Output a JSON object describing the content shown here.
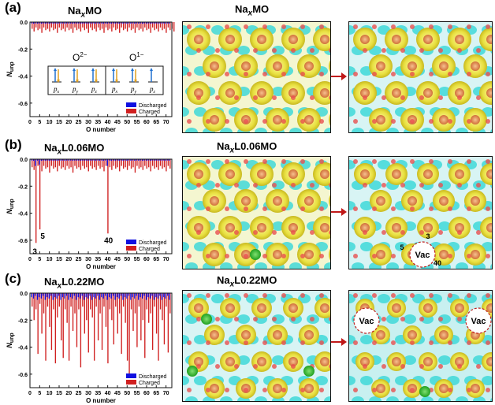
{
  "panels": [
    {
      "label": "(a)",
      "title_base": "Na",
      "title_sub": "x",
      "title_rest": "MO",
      "image_title_base": "Na",
      "image_title_sub": "x",
      "image_title_rest": "MO",
      "orbital_inset": {
        "groups": [
          {
            "label": "O",
            "charge": "2−",
            "orbitals": [
              "p",
              "p",
              "p"
            ],
            "subs": [
              "x",
              "y",
              "z"
            ]
          },
          {
            "label": "O",
            "charge": "1−",
            "orbitals": [
              "p",
              "p",
              "p"
            ],
            "subs": [
              "x",
              "y",
              "z"
            ]
          }
        ]
      },
      "annotations": [],
      "vac_labels": []
    },
    {
      "label": "(b)",
      "title_base": "Na",
      "title_sub": "x",
      "title_rest": "L0.06MO",
      "image_title_base": "Na",
      "image_title_sub": "x",
      "image_title_rest": "L0.06MO",
      "annotations": [
        {
          "text": "5",
          "x": 5
        },
        {
          "text": "3",
          "x": 3
        },
        {
          "text": "40",
          "x": 40
        }
      ],
      "image_annotations": [
        "3",
        "5",
        "40"
      ],
      "vac_labels": [
        "Vac"
      ]
    },
    {
      "label": "(c)",
      "title_base": "Na",
      "title_sub": "x",
      "title_rest": "L0.22MO",
      "image_title_base": "Na",
      "image_title_sub": "x",
      "image_title_rest": "L0.22MO",
      "annotations": [],
      "vac_labels": [
        "Vac",
        "Vac"
      ]
    }
  ],
  "chart_data": [
    {
      "type": "bar",
      "panel": "(a)",
      "xlabel": "O number",
      "ylabel": "N",
      "ylabel_sub": "unp",
      "xlim": [
        0,
        73
      ],
      "ylim": [
        -0.7,
        0.0
      ],
      "xticks": [
        0,
        5,
        10,
        15,
        20,
        25,
        30,
        35,
        40,
        45,
        50,
        55,
        60,
        65,
        70
      ],
      "yticks": [
        0.0,
        -0.2,
        -0.4,
        -0.6
      ],
      "ytick_labels": [
        "0.0",
        "-0.2",
        "-0.4",
        "-0.6"
      ],
      "legend": [
        "Discharged",
        "Charged"
      ],
      "legend_placement": "bottom-right",
      "series": [
        {
          "name": "Discharged",
          "color": "#1010e0",
          "values": [
            -0.01,
            -0.012,
            -0.01,
            -0.011,
            -0.01,
            -0.012,
            -0.01,
            -0.011,
            -0.01,
            -0.012,
            -0.01,
            -0.011,
            -0.01,
            -0.012,
            -0.01,
            -0.011,
            -0.01,
            -0.012,
            -0.01,
            -0.011,
            -0.01,
            -0.012,
            -0.01,
            -0.011,
            -0.01,
            -0.012,
            -0.01,
            -0.011,
            -0.01,
            -0.012,
            -0.01,
            -0.011,
            -0.01,
            -0.012,
            -0.01,
            -0.011,
            -0.01,
            -0.012,
            -0.01,
            -0.011,
            -0.01,
            -0.012,
            -0.01,
            -0.011,
            -0.01,
            -0.012,
            -0.01,
            -0.011,
            -0.01,
            -0.012,
            -0.01,
            -0.011,
            -0.01,
            -0.012,
            -0.01,
            -0.011,
            -0.01,
            -0.012,
            -0.01,
            -0.011,
            -0.01,
            -0.012,
            -0.01,
            -0.011,
            -0.01,
            -0.012,
            -0.01,
            -0.011,
            -0.01,
            -0.012,
            -0.01,
            -0.011
          ]
        },
        {
          "name": "Charged",
          "color": "#d02020",
          "values": [
            -0.05,
            -0.07,
            -0.04,
            -0.06,
            -0.05,
            -0.08,
            -0.04,
            -0.06,
            -0.05,
            -0.07,
            -0.04,
            -0.06,
            -0.05,
            -0.08,
            -0.04,
            -0.06,
            -0.05,
            -0.07,
            -0.04,
            -0.06,
            -0.05,
            -0.08,
            -0.04,
            -0.06,
            -0.05,
            -0.07,
            -0.04,
            -0.06,
            -0.05,
            -0.08,
            -0.04,
            -0.06,
            -0.05,
            -0.07,
            -0.04,
            -0.06,
            -0.05,
            -0.08,
            -0.04,
            -0.06,
            -0.05,
            -0.07,
            -0.04,
            -0.06,
            -0.05,
            -0.08,
            -0.04,
            -0.06,
            -0.05,
            -0.07,
            -0.04,
            -0.06,
            -0.05,
            -0.08,
            -0.04,
            -0.06,
            -0.05,
            -0.07,
            -0.04,
            -0.06,
            -0.05,
            -0.08,
            -0.04,
            -0.06,
            -0.05,
            -0.07,
            -0.04,
            -0.06,
            -0.05,
            -0.08,
            -0.04,
            -0.06,
            -0.05,
            -0.07
          ]
        }
      ]
    },
    {
      "type": "bar",
      "panel": "(b)",
      "xlabel": "O number",
      "ylabel": "N",
      "ylabel_sub": "unp",
      "xlim": [
        0,
        73
      ],
      "ylim": [
        -0.7,
        0.0
      ],
      "xticks": [
        0,
        5,
        10,
        15,
        20,
        25,
        30,
        35,
        40,
        45,
        50,
        55,
        60,
        65,
        70
      ],
      "yticks": [
        0.0,
        -0.2,
        -0.4,
        -0.6
      ],
      "ytick_labels": [
        "0.0",
        "-0.2",
        "-0.4",
        "-0.6"
      ],
      "legend": [
        "Discharged",
        "Charged"
      ],
      "legend_placement": "bottom-right",
      "series": [
        {
          "name": "Discharged",
          "color": "#1010e0",
          "values": [
            -0.01,
            -0.012,
            -0.05,
            -0.011,
            -0.04,
            -0.012,
            -0.01,
            -0.011,
            -0.01,
            -0.012,
            -0.01,
            -0.011,
            -0.01,
            -0.012,
            -0.01,
            -0.011,
            -0.01,
            -0.012,
            -0.01,
            -0.011,
            -0.01,
            -0.012,
            -0.01,
            -0.011,
            -0.01,
            -0.012,
            -0.01,
            -0.011,
            -0.01,
            -0.012,
            -0.01,
            -0.011,
            -0.01,
            -0.012,
            -0.01,
            -0.011,
            -0.01,
            -0.012,
            -0.01,
            -0.05,
            -0.01,
            -0.012,
            -0.01,
            -0.011,
            -0.01,
            -0.012,
            -0.01,
            -0.011,
            -0.01,
            -0.012,
            -0.01,
            -0.011,
            -0.01,
            -0.012,
            -0.01,
            -0.011,
            -0.01,
            -0.012,
            -0.01,
            -0.011,
            -0.01,
            -0.012,
            -0.01,
            -0.011,
            -0.01,
            -0.012,
            -0.01,
            -0.011,
            -0.01,
            -0.012,
            -0.01,
            -0.011
          ]
        },
        {
          "name": "Charged",
          "color": "#d02020",
          "values": [
            -0.06,
            -0.08,
            -0.62,
            -0.05,
            -0.52,
            -0.09,
            -0.05,
            -0.07,
            -0.06,
            -0.1,
            -0.05,
            -0.07,
            -0.06,
            -0.09,
            -0.05,
            -0.07,
            -0.06,
            -0.08,
            -0.05,
            -0.07,
            -0.06,
            -0.1,
            -0.05,
            -0.07,
            -0.06,
            -0.08,
            -0.05,
            -0.07,
            -0.06,
            -0.09,
            -0.05,
            -0.07,
            -0.06,
            -0.08,
            -0.05,
            -0.07,
            -0.06,
            -0.09,
            -0.05,
            -0.55,
            -0.06,
            -0.08,
            -0.05,
            -0.07,
            -0.06,
            -0.09,
            -0.05,
            -0.07,
            -0.06,
            -0.08,
            -0.05,
            -0.07,
            -0.06,
            -0.1,
            -0.05,
            -0.07,
            -0.06,
            -0.08,
            -0.05,
            -0.07,
            -0.06,
            -0.09,
            -0.05,
            -0.07,
            -0.06,
            -0.08,
            -0.05,
            -0.07,
            -0.06,
            -0.09,
            -0.05,
            -0.07
          ]
        }
      ]
    },
    {
      "type": "bar",
      "panel": "(c)",
      "xlabel": "O number",
      "ylabel": "N",
      "ylabel_sub": "unp",
      "xlim": [
        0,
        73
      ],
      "ylim": [
        -0.7,
        0.0
      ],
      "xticks": [
        0,
        5,
        10,
        15,
        20,
        25,
        30,
        35,
        40,
        45,
        50,
        55,
        60,
        65,
        70
      ],
      "yticks": [
        0.0,
        -0.2,
        -0.4,
        -0.6
      ],
      "ytick_labels": [
        "0.0",
        "-0.2",
        "-0.4",
        "-0.6"
      ],
      "legend": [
        "Discharged",
        "Charged"
      ],
      "legend_placement": "bottom-right",
      "series": [
        {
          "name": "Discharged",
          "color": "#1010e0",
          "values": [
            -0.03,
            -0.04,
            -0.02,
            -0.05,
            -0.03,
            -0.04,
            -0.02,
            -0.05,
            -0.03,
            -0.04,
            -0.02,
            -0.05,
            -0.03,
            -0.04,
            -0.02,
            -0.05,
            -0.03,
            -0.04,
            -0.02,
            -0.05,
            -0.03,
            -0.04,
            -0.02,
            -0.05,
            -0.03,
            -0.04,
            -0.02,
            -0.05,
            -0.03,
            -0.04,
            -0.02,
            -0.05,
            -0.03,
            -0.04,
            -0.02,
            -0.05,
            -0.03,
            -0.04,
            -0.02,
            -0.05,
            -0.03,
            -0.04,
            -0.02,
            -0.05,
            -0.03,
            -0.04,
            -0.02,
            -0.05,
            -0.03,
            -0.04,
            -0.02,
            -0.05,
            -0.03,
            -0.04,
            -0.02,
            -0.05,
            -0.03,
            -0.04,
            -0.02,
            -0.05,
            -0.03,
            -0.04,
            -0.02,
            -0.05,
            -0.03,
            -0.04,
            -0.02,
            -0.05,
            -0.03,
            -0.04,
            -0.02,
            -0.05
          ]
        },
        {
          "name": "Charged",
          "color": "#d02020",
          "values": [
            -0.1,
            -0.2,
            -0.12,
            -0.45,
            -0.08,
            -0.3,
            -0.15,
            -0.5,
            -0.1,
            -0.25,
            -0.42,
            -0.12,
            -0.52,
            -0.18,
            -0.1,
            -0.35,
            -0.48,
            -0.12,
            -0.22,
            -0.5,
            -0.1,
            -0.28,
            -0.15,
            -0.4,
            -0.12,
            -0.55,
            -0.1,
            -0.3,
            -0.2,
            -0.44,
            -0.12,
            -0.18,
            -0.5,
            -0.1,
            -0.35,
            -0.15,
            -0.42,
            -0.1,
            -0.25,
            -0.52,
            -0.12,
            -0.2,
            -0.38,
            -0.1,
            -0.3,
            -0.15,
            -0.45,
            -0.1,
            -0.22,
            -0.5,
            -0.62,
            -0.12,
            -0.28,
            -0.15,
            -0.4,
            -0.1,
            -0.35,
            -0.2,
            -0.48,
            -0.12,
            -0.22,
            -0.15,
            -0.42,
            -0.1,
            -0.3,
            -0.5,
            -0.12,
            -0.2,
            -0.38,
            -0.1,
            -0.44,
            -0.15
          ]
        }
      ]
    }
  ]
}
